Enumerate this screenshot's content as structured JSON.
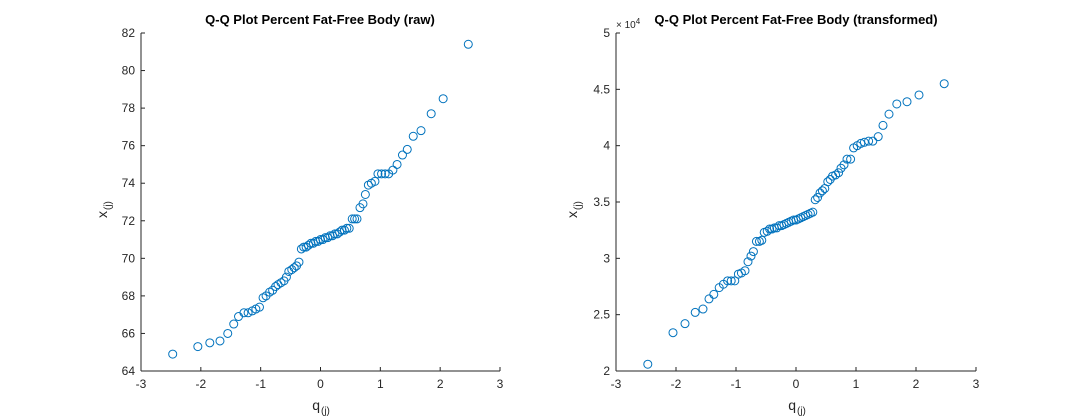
{
  "chart_data": [
    {
      "type": "scatter",
      "title": "Q-Q Plot Percent Fat-Free Body (raw)",
      "xlabel": "q",
      "xlabel_sub": "(j)",
      "ylabel": "x",
      "ylabel_sub": "(j)",
      "xlim": [
        -3,
        3
      ],
      "ylim": [
        64,
        82
      ],
      "x_ticks": [
        "-3",
        "-2",
        "-1",
        "0",
        "1",
        "2",
        "3"
      ],
      "y_ticks": [
        "64",
        "66",
        "68",
        "70",
        "72",
        "74",
        "76",
        "78",
        "80",
        "82"
      ],
      "marker_color": "#0072BD",
      "grid": false,
      "points": [
        [
          -2.47,
          64.9
        ],
        [
          -2.05,
          65.3
        ],
        [
          -1.85,
          65.5
        ],
        [
          -1.68,
          65.6
        ],
        [
          -1.55,
          66.0
        ],
        [
          -1.45,
          66.5
        ],
        [
          -1.37,
          66.9
        ],
        [
          -1.28,
          67.1
        ],
        [
          -1.21,
          67.1
        ],
        [
          -1.14,
          67.2
        ],
        [
          -1.08,
          67.3
        ],
        [
          -1.02,
          67.4
        ],
        [
          -0.96,
          67.9
        ],
        [
          -0.91,
          68.0
        ],
        [
          -0.85,
          68.2
        ],
        [
          -0.8,
          68.3
        ],
        [
          -0.75,
          68.5
        ],
        [
          -0.71,
          68.6
        ],
        [
          -0.66,
          68.7
        ],
        [
          -0.61,
          68.8
        ],
        [
          -0.57,
          69.0
        ],
        [
          -0.53,
          69.3
        ],
        [
          -0.48,
          69.4
        ],
        [
          -0.44,
          69.5
        ],
        [
          -0.4,
          69.6
        ],
        [
          -0.36,
          69.8
        ],
        [
          -0.32,
          70.5
        ],
        [
          -0.28,
          70.6
        ],
        [
          -0.24,
          70.6
        ],
        [
          -0.2,
          70.7
        ],
        [
          -0.16,
          70.8
        ],
        [
          -0.12,
          70.8
        ],
        [
          -0.08,
          70.9
        ],
        [
          -0.04,
          70.9
        ],
        [
          0.0,
          71.0
        ],
        [
          0.04,
          71.0
        ],
        [
          0.08,
          71.1
        ],
        [
          0.12,
          71.1
        ],
        [
          0.16,
          71.2
        ],
        [
          0.2,
          71.2
        ],
        [
          0.24,
          71.3
        ],
        [
          0.28,
          71.3
        ],
        [
          0.32,
          71.4
        ],
        [
          0.36,
          71.5
        ],
        [
          0.4,
          71.5
        ],
        [
          0.44,
          71.6
        ],
        [
          0.48,
          71.6
        ],
        [
          0.53,
          72.1
        ],
        [
          0.57,
          72.1
        ],
        [
          0.61,
          72.1
        ],
        [
          0.66,
          72.7
        ],
        [
          0.71,
          72.9
        ],
        [
          0.75,
          73.4
        ],
        [
          0.8,
          73.9
        ],
        [
          0.85,
          74.0
        ],
        [
          0.91,
          74.1
        ],
        [
          0.96,
          74.5
        ],
        [
          1.02,
          74.5
        ],
        [
          1.08,
          74.5
        ],
        [
          1.14,
          74.5
        ],
        [
          1.21,
          74.7
        ],
        [
          1.28,
          75.0
        ],
        [
          1.37,
          75.5
        ],
        [
          1.45,
          75.8
        ],
        [
          1.55,
          76.5
        ],
        [
          1.68,
          76.8
        ],
        [
          1.85,
          77.7
        ],
        [
          2.05,
          78.5
        ],
        [
          2.47,
          81.4
        ]
      ]
    },
    {
      "type": "scatter",
      "title": "Q-Q Plot Percent Fat-Free Body (transformed)",
      "xlabel": "q",
      "xlabel_sub": "(j)",
      "ylabel": "x",
      "ylabel_sub": "(j)",
      "y_exponent_label": "× 10",
      "y_exponent_power": "4",
      "xlim": [
        -3,
        3
      ],
      "ylim": [
        2,
        5
      ],
      "x_ticks": [
        "-3",
        "-2",
        "-1",
        "0",
        "1",
        "2",
        "3"
      ],
      "y_ticks": [
        "2",
        "2.5",
        "3",
        "3.5",
        "4",
        "4.5",
        "5"
      ],
      "marker_color": "#0072BD",
      "grid": false,
      "points": [
        [
          -2.47,
          2.06
        ],
        [
          -2.05,
          2.34
        ],
        [
          -1.85,
          2.42
        ],
        [
          -1.68,
          2.52
        ],
        [
          -1.55,
          2.55
        ],
        [
          -1.45,
          2.64
        ],
        [
          -1.37,
          2.68
        ],
        [
          -1.28,
          2.74
        ],
        [
          -1.21,
          2.77
        ],
        [
          -1.14,
          2.8
        ],
        [
          -1.08,
          2.8
        ],
        [
          -1.02,
          2.8
        ],
        [
          -0.96,
          2.86
        ],
        [
          -0.91,
          2.87
        ],
        [
          -0.85,
          2.89
        ],
        [
          -0.8,
          2.97
        ],
        [
          -0.75,
          3.02
        ],
        [
          -0.71,
          3.06
        ],
        [
          -0.66,
          3.15
        ],
        [
          -0.61,
          3.15
        ],
        [
          -0.57,
          3.16
        ],
        [
          -0.53,
          3.23
        ],
        [
          -0.48,
          3.24
        ],
        [
          -0.44,
          3.26
        ],
        [
          -0.4,
          3.26
        ],
        [
          -0.36,
          3.27
        ],
        [
          -0.32,
          3.27
        ],
        [
          -0.28,
          3.29
        ],
        [
          -0.24,
          3.29
        ],
        [
          -0.2,
          3.3
        ],
        [
          -0.16,
          3.31
        ],
        [
          -0.12,
          3.32
        ],
        [
          -0.08,
          3.33
        ],
        [
          -0.04,
          3.34
        ],
        [
          0.0,
          3.34
        ],
        [
          0.04,
          3.35
        ],
        [
          0.08,
          3.36
        ],
        [
          0.12,
          3.37
        ],
        [
          0.16,
          3.38
        ],
        [
          0.2,
          3.39
        ],
        [
          0.24,
          3.4
        ],
        [
          0.28,
          3.41
        ],
        [
          0.32,
          3.52
        ],
        [
          0.36,
          3.54
        ],
        [
          0.4,
          3.58
        ],
        [
          0.44,
          3.6
        ],
        [
          0.48,
          3.62
        ],
        [
          0.53,
          3.68
        ],
        [
          0.57,
          3.7
        ],
        [
          0.61,
          3.73
        ],
        [
          0.66,
          3.74
        ],
        [
          0.71,
          3.76
        ],
        [
          0.75,
          3.8
        ],
        [
          0.8,
          3.83
        ],
        [
          0.85,
          3.88
        ],
        [
          0.91,
          3.88
        ],
        [
          0.96,
          3.98
        ],
        [
          1.02,
          4.0
        ],
        [
          1.08,
          4.02
        ],
        [
          1.14,
          4.03
        ],
        [
          1.21,
          4.04
        ],
        [
          1.28,
          4.04
        ],
        [
          1.37,
          4.08
        ],
        [
          1.45,
          4.18
        ],
        [
          1.55,
          4.28
        ],
        [
          1.68,
          4.37
        ],
        [
          1.85,
          4.39
        ],
        [
          2.05,
          4.45
        ],
        [
          2.47,
          4.55
        ]
      ]
    }
  ]
}
